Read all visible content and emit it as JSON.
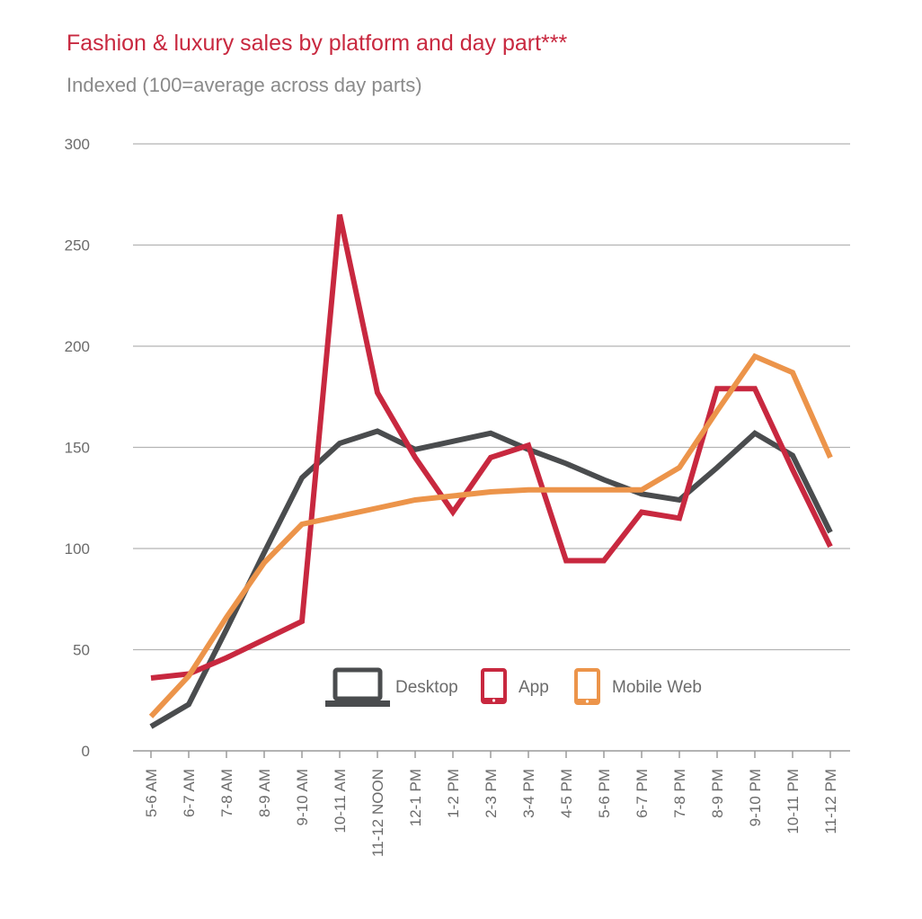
{
  "chart_data": {
    "type": "line",
    "title": "Fashion & luxury sales by platform and day part***",
    "subtitle": "Indexed (100=average across day parts)",
    "xlabel": "",
    "ylabel": "",
    "ylim": [
      0,
      300
    ],
    "yticks": [
      0,
      50,
      100,
      150,
      200,
      250,
      300
    ],
    "grid": true,
    "legend_position": "center",
    "categories": [
      "5-6 AM",
      "6-7 AM",
      "7-8 AM",
      "8-9 AM",
      "9-10 AM",
      "10-11 AM",
      "11-12 NOON",
      "12-1 PM",
      "1-2 PM",
      "2-3 PM",
      "3-4 PM",
      "4-5 PM",
      "5-6 PM",
      "6-7 PM",
      "7-8 PM",
      "8-9 PM",
      "9-10 PM",
      "10-11 PM",
      "11-12 PM"
    ],
    "series": [
      {
        "name": "Desktop",
        "color": "#4a4c4e",
        "icon": "laptop-icon",
        "values": [
          12,
          23,
          60,
          98,
          135,
          152,
          158,
          149,
          153,
          157,
          149,
          142,
          134,
          127,
          124,
          140,
          157,
          146,
          108
        ]
      },
      {
        "name": "App",
        "color": "#c8283f",
        "icon": "phone-icon",
        "values": [
          36,
          38,
          46,
          55,
          64,
          265,
          177,
          145,
          118,
          145,
          151,
          94,
          94,
          118,
          115,
          179,
          179,
          139,
          101
        ]
      },
      {
        "name": "Mobile Web",
        "color": "#ec944a",
        "icon": "tablet-icon",
        "values": [
          17,
          37,
          66,
          93,
          112,
          116,
          120,
          124,
          126,
          128,
          129,
          129,
          129,
          129,
          140,
          168,
          195,
          187,
          145
        ]
      }
    ]
  }
}
